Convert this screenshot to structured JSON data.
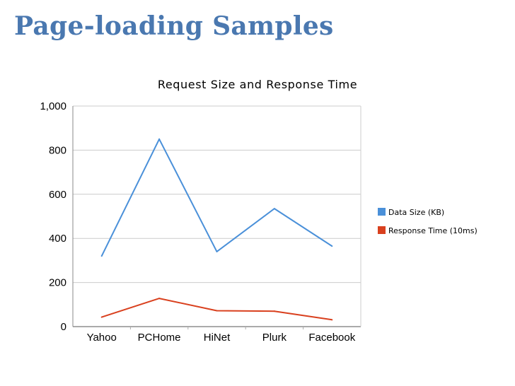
{
  "slide": {
    "title": "Page-loading Samples"
  },
  "chart_data": {
    "type": "line",
    "title": "Request Size and Response Time",
    "categories": [
      "Yahoo",
      "PCHome",
      "HiNet",
      "Plurk",
      "Facebook"
    ],
    "series": [
      {
        "name": "Data Size (KB)",
        "color": "#4a90d9",
        "values": [
          320,
          850,
          340,
          535,
          365
        ]
      },
      {
        "name": "Response Time (10ms)",
        "color": "#d9401e",
        "values": [
          43,
          128,
          72,
          70,
          31
        ]
      }
    ],
    "ylim": [
      0,
      1000
    ],
    "yticks": [
      0,
      200,
      400,
      600,
      800,
      1000
    ],
    "ytick_labels": [
      "0",
      "200",
      "400",
      "600",
      "800",
      "1,000"
    ],
    "grid": true,
    "legend_position": "right"
  }
}
